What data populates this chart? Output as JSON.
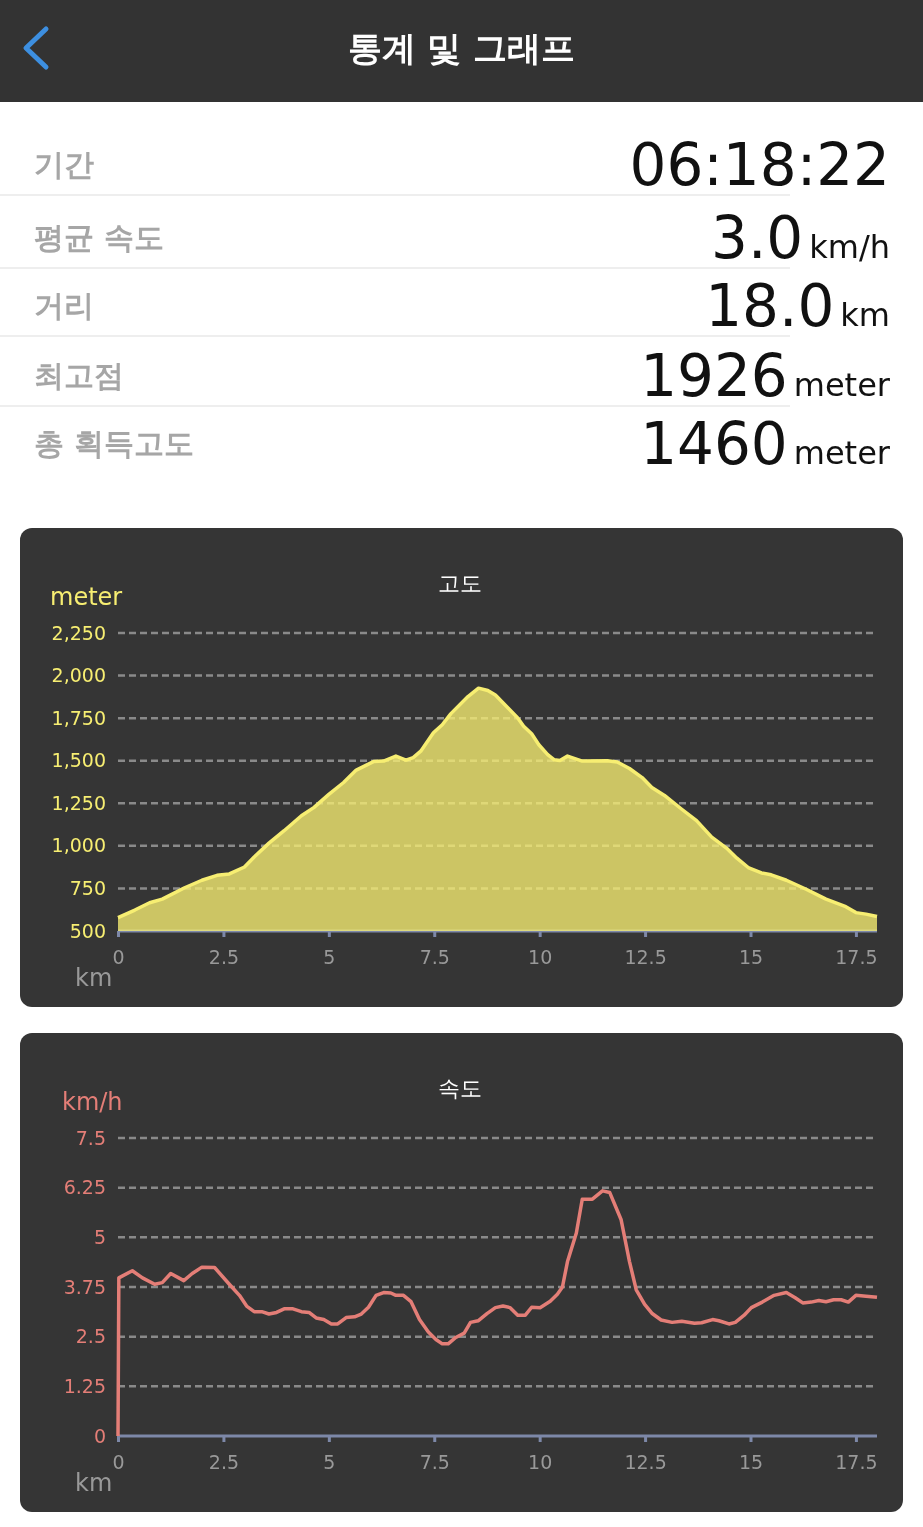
{
  "chart_data": [
    {
      "type": "other",
      "title": "통계 및 그래프",
      "categories": [
        "기간",
        "평균 속도",
        "거리",
        "최고점",
        "총 획득고도"
      ],
      "value_labels": [
        "06:18:22",
        "3.0",
        "18.0",
        "1926",
        "1460"
      ],
      "annotations": [
        "km/h",
        "km",
        "meter",
        "meter"
      ]
    },
    {
      "type": "area",
      "title": "고도",
      "ylabel": "meter",
      "xlabel": "km",
      "color": "#f7ee72",
      "grid": "y",
      "line_style": "solid",
      "xlim": [
        0,
        18
      ],
      "xticks": [
        0,
        2.5,
        5,
        7.5,
        10,
        12.5,
        15,
        17.5
      ],
      "ylim": [
        500,
        2250
      ],
      "yticks": [
        {
          "value": 500,
          "label": "500"
        },
        {
          "value": 750,
          "label": "750"
        },
        {
          "value": 1000,
          "label": "1,000"
        },
        {
          "value": 1250,
          "label": "1,250"
        },
        {
          "value": 1500,
          "label": "1,500"
        },
        {
          "value": 1750,
          "label": "1,750"
        },
        {
          "value": 2000,
          "label": "2,000"
        },
        {
          "value": 2250,
          "label": "2,250"
        }
      ],
      "x": [
        0,
        0.4,
        0.75,
        1.05,
        1.58,
        1.99,
        2.35,
        2.64,
        3.0,
        3.23,
        3.58,
        3.94,
        4.35,
        4.65,
        5.0,
        5.35,
        5.65,
        6.06,
        6.3,
        6.59,
        6.83,
        7.0,
        7.18,
        7.48,
        7.69,
        7.89,
        8.3,
        8.55,
        8.77,
        8.95,
        9.25,
        9.48,
        9.62,
        9.81,
        9.98,
        10.19,
        10.34,
        10.48,
        10.66,
        11.01,
        11.6,
        11.84,
        12.13,
        12.43,
        12.66,
        12.96,
        13.37,
        13.72,
        14.08,
        14.43,
        14.67,
        14.96,
        15.26,
        15.49,
        15.85,
        16.32,
        16.79,
        17.26,
        17.5,
        17.74,
        18.0
      ],
      "values": [
        579,
        623,
        666,
        687,
        754,
        798,
        827,
        835,
        876,
        935,
        1016,
        1089,
        1177,
        1226,
        1302,
        1372,
        1445,
        1495,
        1498,
        1527,
        1503,
        1518,
        1556,
        1664,
        1711,
        1775,
        1877,
        1926,
        1912,
        1886,
        1810,
        1751,
        1702,
        1658,
        1594,
        1536,
        1506,
        1501,
        1527,
        1498,
        1500,
        1492,
        1454,
        1401,
        1343,
        1296,
        1215,
        1148,
        1051,
        987,
        929,
        870,
        841,
        830,
        798,
        745,
        687,
        643,
        608,
        599,
        585
      ]
    },
    {
      "type": "line",
      "title": "속도",
      "ylabel": "km/h",
      "xlabel": "km",
      "color": "#e47e77",
      "grid": "y",
      "line_style": "solid",
      "xlim": [
        0,
        18
      ],
      "xticks": [
        0,
        2.5,
        5,
        7.5,
        10,
        12.5,
        15,
        17.5
      ],
      "ylim": [
        0,
        7.5
      ],
      "yticks": [
        0,
        1.25,
        2.5,
        3.75,
        5,
        6.25,
        7.5
      ],
      "x": [
        0,
        0.02,
        0.34,
        0.58,
        0.87,
        1.05,
        1.25,
        1.56,
        1.76,
        1.99,
        2.29,
        2.64,
        2.88,
        3.05,
        3.23,
        3.41,
        3.58,
        3.76,
        3.94,
        4.15,
        4.35,
        4.53,
        4.7,
        4.88,
        5.06,
        5.21,
        5.41,
        5.61,
        5.77,
        5.94,
        6.12,
        6.3,
        6.47,
        6.59,
        6.77,
        6.95,
        7.15,
        7.36,
        7.54,
        7.69,
        7.83,
        8.01,
        8.21,
        8.36,
        8.54,
        8.75,
        8.95,
        9.13,
        9.3,
        9.48,
        9.66,
        9.81,
        10.01,
        10.25,
        10.42,
        10.54,
        10.66,
        10.87,
        11.01,
        11.25,
        11.49,
        11.66,
        11.93,
        12.13,
        12.29,
        12.49,
        12.66,
        12.88,
        13.14,
        13.37,
        13.67,
        13.84,
        14.1,
        14.25,
        14.49,
        14.64,
        14.85,
        15.02,
        15.28,
        15.56,
        15.85,
        16.06,
        16.24,
        16.44,
        16.62,
        16.79,
        16.97,
        17.15,
        17.32,
        17.5,
        17.74,
        18.0
      ],
      "values": [
        0,
        3.98,
        4.16,
        3.98,
        3.82,
        3.86,
        4.09,
        3.91,
        4.09,
        4.25,
        4.24,
        3.82,
        3.54,
        3.27,
        3.13,
        3.13,
        3.07,
        3.11,
        3.2,
        3.2,
        3.13,
        3.11,
        2.97,
        2.93,
        2.82,
        2.82,
        2.98,
        3.0,
        3.07,
        3.24,
        3.54,
        3.61,
        3.6,
        3.54,
        3.54,
        3.38,
        2.93,
        2.62,
        2.43,
        2.32,
        2.32,
        2.48,
        2.59,
        2.86,
        2.9,
        3.08,
        3.23,
        3.27,
        3.23,
        3.04,
        3.04,
        3.24,
        3.23,
        3.39,
        3.57,
        3.75,
        4.39,
        5.11,
        5.96,
        5.96,
        6.17,
        6.13,
        5.45,
        4.39,
        3.68,
        3.31,
        3.09,
        2.92,
        2.86,
        2.89,
        2.84,
        2.85,
        2.93,
        2.9,
        2.82,
        2.86,
        3.04,
        3.23,
        3.37,
        3.54,
        3.61,
        3.48,
        3.35,
        3.37,
        3.41,
        3.38,
        3.43,
        3.43,
        3.37,
        3.54,
        3.52,
        3.49
      ]
    }
  ]
}
